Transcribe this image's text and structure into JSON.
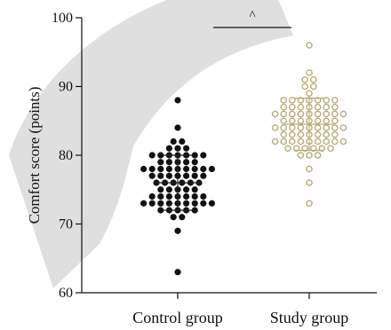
{
  "chart_data": {
    "type": "scatter",
    "subtype": "dot-strip",
    "ylabel": "Comfort score (points)",
    "ylim": [
      60,
      100
    ],
    "yticks": [
      "60",
      "70",
      "80",
      "90",
      "100"
    ],
    "categories": [
      "Control group",
      "Study group"
    ],
    "significance_marker": "^",
    "colors": {
      "control": "#111111",
      "study": "#b8aa76",
      "axis": "#111111",
      "watermark": "#d9d9d9"
    },
    "series": [
      {
        "values": [
          88,
          84,
          82,
          82,
          81,
          81,
          81,
          80,
          80,
          80,
          80,
          80,
          80,
          80,
          79,
          79,
          79,
          79,
          79,
          78,
          78,
          78,
          78,
          78,
          78,
          78,
          78,
          78,
          77,
          77,
          77,
          77,
          77,
          77,
          77,
          76,
          76,
          76,
          76,
          76,
          76,
          75,
          75,
          75,
          75,
          75,
          74,
          74,
          74,
          74,
          74,
          74,
          74,
          73,
          73,
          73,
          73,
          73,
          73,
          73,
          73,
          73,
          72,
          72,
          72,
          72,
          72,
          71,
          71,
          69,
          63
        ],
        "mean": 76,
        "sd": 4
      },
      {
        "values": [
          96,
          92,
          91,
          91,
          90,
          90,
          89,
          88,
          88,
          88,
          88,
          88,
          88,
          88,
          87,
          87,
          87,
          87,
          87,
          87,
          87,
          86,
          86,
          86,
          86,
          86,
          86,
          86,
          86,
          86,
          85,
          85,
          85,
          85,
          85,
          85,
          85,
          84,
          84,
          84,
          84,
          84,
          84,
          84,
          84,
          84,
          83,
          83,
          83,
          83,
          83,
          83,
          83,
          82,
          82,
          82,
          82,
          82,
          82,
          82,
          82,
          82,
          81,
          81,
          81,
          81,
          81,
          81,
          80,
          80,
          80,
          78,
          76,
          73
        ],
        "mean": 84.5,
        "sd": 3.8
      }
    ]
  }
}
